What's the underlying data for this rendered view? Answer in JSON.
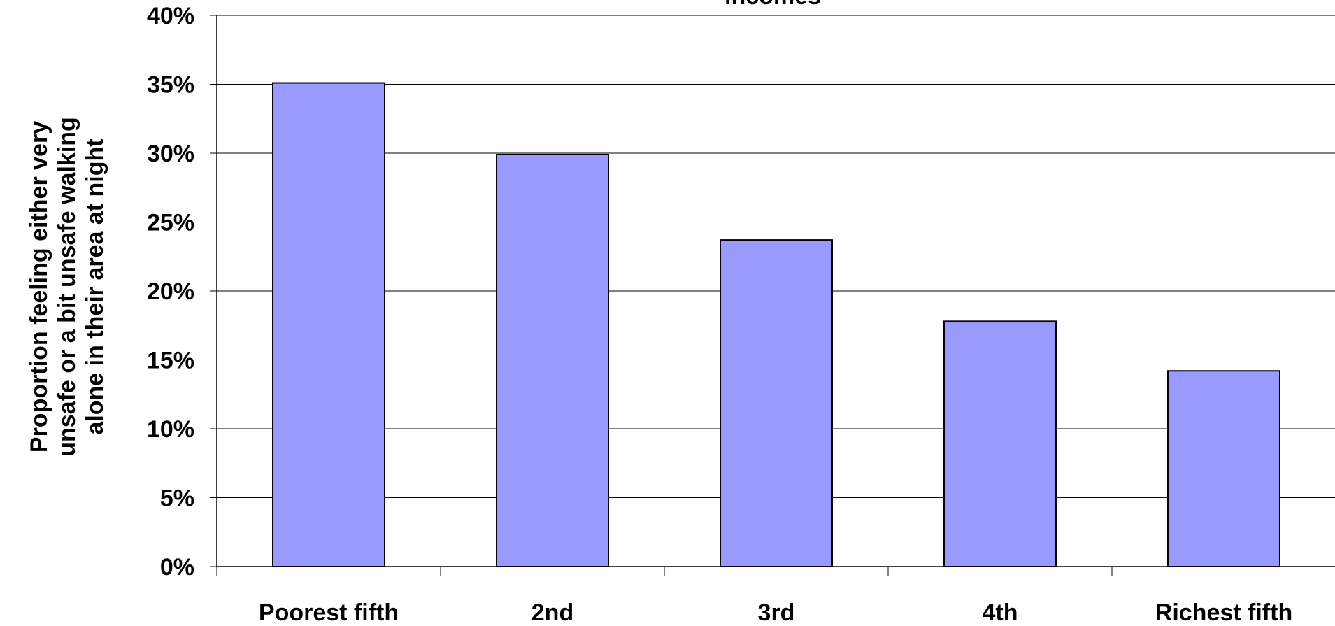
{
  "chart_data": {
    "type": "bar",
    "title": "incomes",
    "ylabel": [
      "Proportion feeling either very",
      "unsafe or a bit unsafe walking",
      "alone in their area at night"
    ],
    "xlabel": "",
    "categories": [
      "Poorest fifth",
      "2nd",
      "3rd",
      "4th",
      "Richest fifth"
    ],
    "values": [
      35.1,
      29.9,
      23.7,
      17.8,
      14.2
    ],
    "ylim": [
      0,
      40
    ],
    "yticks": [
      "0%",
      "5%",
      "10%",
      "15%",
      "20%",
      "25%",
      "30%",
      "35%",
      "40%"
    ],
    "grid": true,
    "legend": "none",
    "bar_color": "#9999ff",
    "bar_edge_color": "#000000"
  }
}
